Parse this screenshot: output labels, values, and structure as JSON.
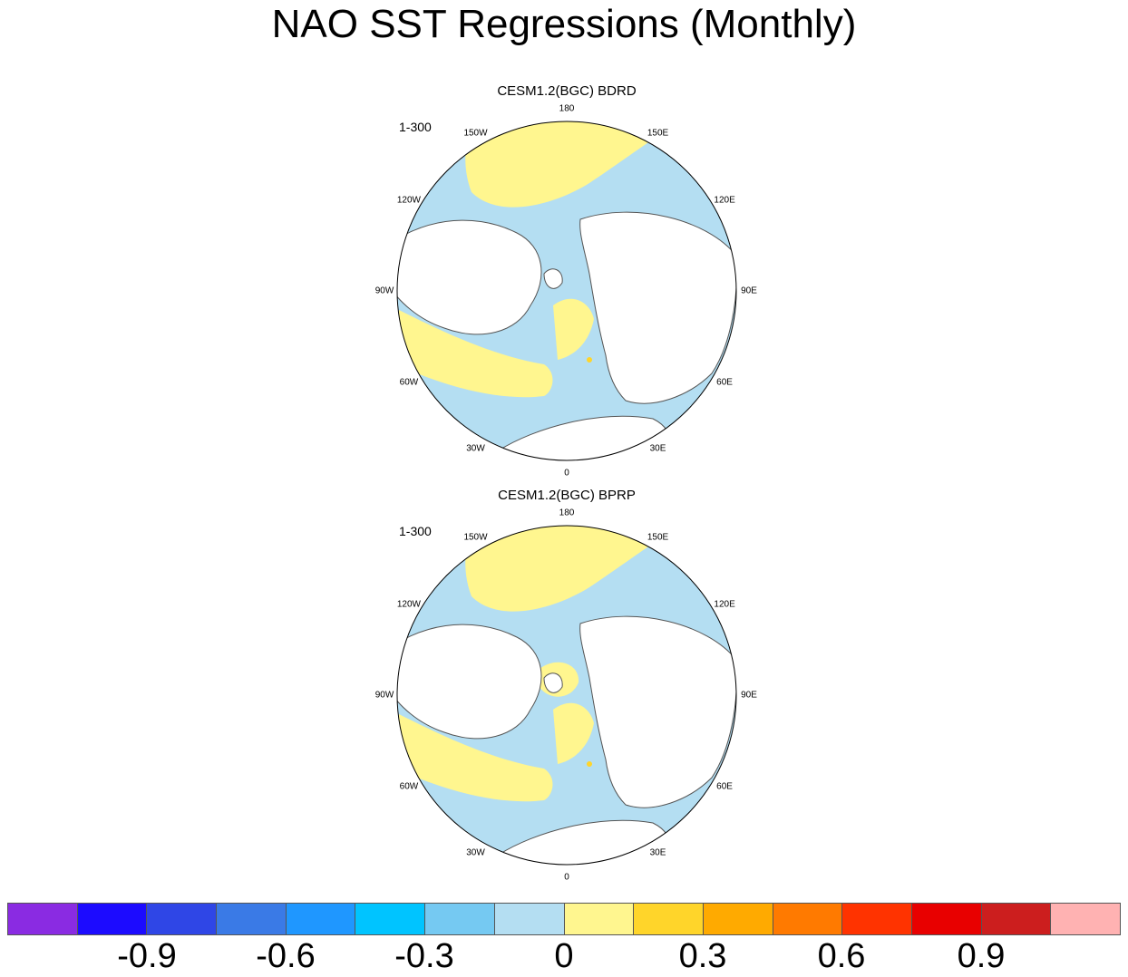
{
  "title": "NAO SST Regressions (Monthly)",
  "panels": [
    {
      "title": "CESM1.2(BGC) BDRD",
      "period": "1-300",
      "lon_labels": [
        "180",
        "150E",
        "120E",
        "90E",
        "60E",
        "30E",
        "0",
        "30W",
        "60W",
        "90W",
        "120W",
        "150W"
      ]
    },
    {
      "title": "CESM1.2(BGC) BPRP",
      "period": "1-300",
      "lon_labels": [
        "180",
        "150E",
        "120E",
        "90E",
        "60E",
        "30E",
        "0",
        "30W",
        "60W",
        "90W",
        "120W",
        "150W"
      ]
    }
  ],
  "colorbar": {
    "colors": [
      "#8a2be2",
      "#1c0bff",
      "#2f46e6",
      "#3a7ae6",
      "#1f97ff",
      "#00c4ff",
      "#75c9f2",
      "#b4def2",
      "#fff68f",
      "#ffd52a",
      "#ffaa00",
      "#ff7a00",
      "#ff3300",
      "#e80000",
      "#cc1e1e",
      "#ffb2b2"
    ],
    "tick_labels": [
      "-0.9",
      "-0.6",
      "-0.3",
      "0",
      "0.3",
      "0.6",
      "0.9"
    ]
  },
  "colors": {
    "neg_light": "#b4def2",
    "pos_light": "#fff68f",
    "pos_mid": "#ffd52a",
    "coast": "#555555"
  }
}
